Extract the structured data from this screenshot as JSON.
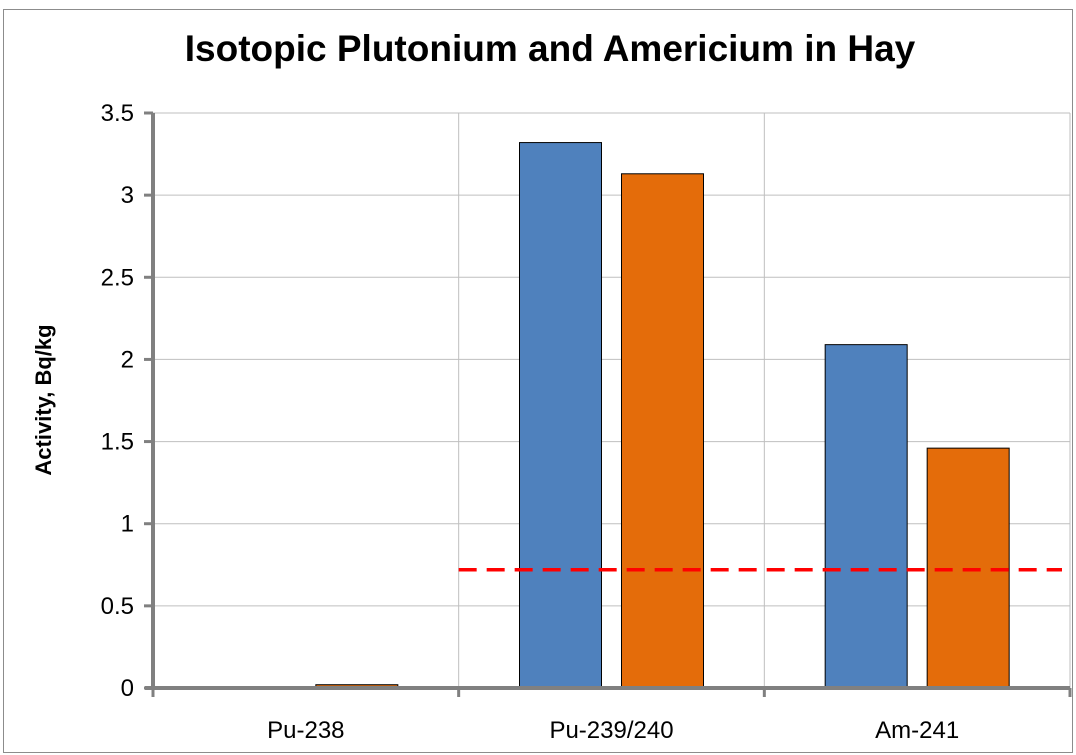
{
  "chart_data": {
    "type": "bar",
    "title": "Isotopic Plutonium and Americium in Hay",
    "ylabel": "Activity, Bq/kg",
    "xlabel": "",
    "categories": [
      "Pu-238",
      "Pu-239/240",
      "Am-241"
    ],
    "ylim": [
      0,
      3.5
    ],
    "yticks": [
      "0",
      "0.5",
      "1",
      "1.5",
      "2",
      "2.5",
      "3",
      "3.5"
    ],
    "grid": true,
    "legend": "none",
    "series": [
      {
        "values": [
          0,
          3.32,
          2.09
        ],
        "color": "#4f81bd"
      },
      {
        "values": [
          0.02,
          3.13,
          1.46
        ],
        "color": "#e46c0a"
      }
    ],
    "reference_line": {
      "value": 0.72,
      "color": "#ff0000",
      "style": "dashed"
    }
  }
}
